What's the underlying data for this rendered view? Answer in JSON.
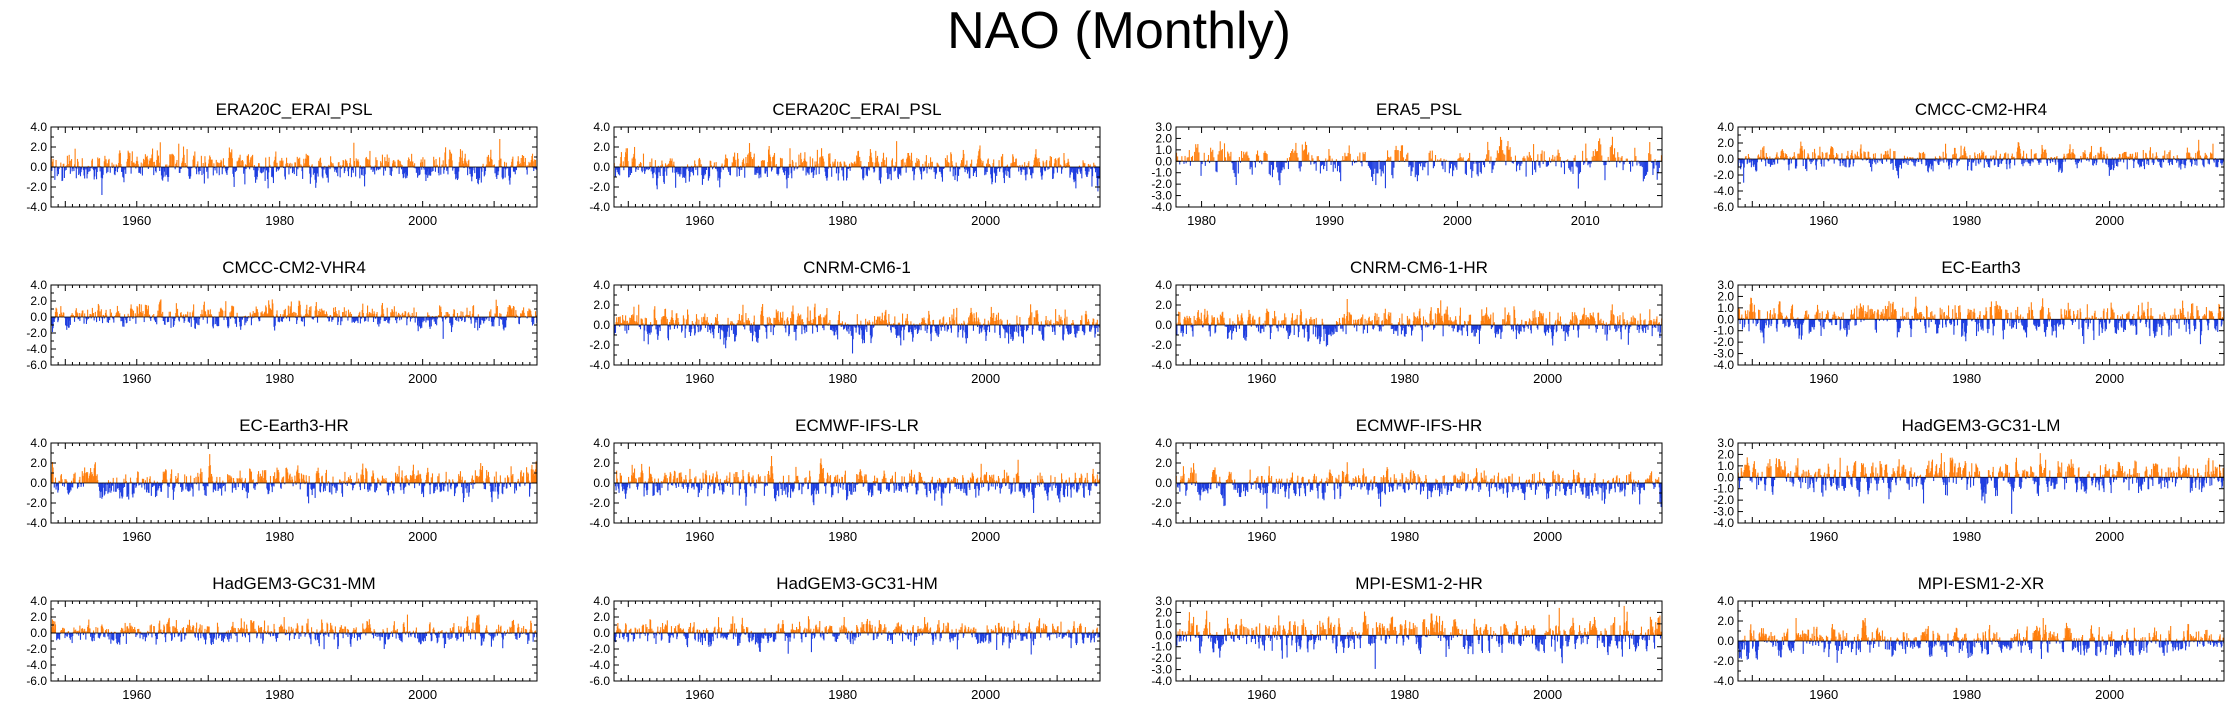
{
  "title": "NAO (Monthly)",
  "colors": {
    "positive": "#ff7f0e",
    "negative": "#1f3fe0",
    "axis": "#000000"
  },
  "chart_data": [
    {
      "type": "bar",
      "title": "ERA20C_ERAI_PSL",
      "xlim": [
        1948,
        2016
      ],
      "ylim": [
        -4,
        4
      ],
      "yticks": [
        -4.0,
        -3.0,
        -2.0,
        -1.0,
        0.0,
        1.0,
        2.0,
        3.0,
        4.0
      ],
      "ytick_labels": [
        "-4.0",
        "",
        "-2.0",
        "",
        "0.0",
        "",
        "2.0",
        "",
        "4.0"
      ],
      "xticks": [
        1960,
        1980,
        2000
      ],
      "ampPos": 2.8,
      "ampNeg": 3.2
    },
    {
      "type": "bar",
      "title": "CERA20C_ERAI_PSL",
      "xlim": [
        1948,
        2016
      ],
      "ylim": [
        -4,
        4
      ],
      "yticks": [
        -4.0,
        -3.0,
        -2.0,
        -1.0,
        0.0,
        1.0,
        2.0,
        3.0,
        4.0
      ],
      "ytick_labels": [
        "-4.0",
        "",
        "-2.0",
        "",
        "0.0",
        "",
        "2.0",
        "",
        "4.0"
      ],
      "xticks": [
        1960,
        1980,
        2000
      ],
      "ampPos": 2.9,
      "ampNeg": 3.2
    },
    {
      "type": "bar",
      "title": "ERA5_PSL",
      "xlim": [
        1978,
        2016
      ],
      "ylim": [
        -4,
        3
      ],
      "yticks": [
        -4.0,
        -3.0,
        -2.0,
        -1.0,
        0.0,
        1.0,
        2.0,
        3.0
      ],
      "ytick_labels": [
        "-4.0",
        "-3.0",
        "-2.0",
        "-1.0",
        "0.0",
        "1.0",
        "2.0",
        "3.0"
      ],
      "xticks": [
        1980,
        1990,
        2000,
        2010
      ],
      "ampPos": 2.6,
      "ampNeg": 3.3
    },
    {
      "type": "bar",
      "title": "CMCC-CM2-HR4",
      "xlim": [
        1948,
        2016
      ],
      "ylim": [
        -6,
        4
      ],
      "yticks": [
        -6.0,
        -5.0,
        -4.0,
        -3.0,
        -2.0,
        -1.0,
        0.0,
        1.0,
        2.0,
        3.0,
        4.0
      ],
      "ytick_labels": [
        "-6.0",
        "",
        "-4.0",
        "",
        "-2.0",
        "",
        "0.0",
        "",
        "2.0",
        "",
        "4.0"
      ],
      "xticks": [
        1960,
        1980,
        2000
      ],
      "ampPos": 2.4,
      "ampNeg": 3.6
    },
    {
      "type": "bar",
      "title": "CMCC-CM2-VHR4",
      "xlim": [
        1948,
        2016
      ],
      "ylim": [
        -6,
        4
      ],
      "yticks": [
        -6.0,
        -5.0,
        -4.0,
        -3.0,
        -2.0,
        -1.0,
        0.0,
        1.0,
        2.0,
        3.0,
        4.0
      ],
      "ytick_labels": [
        "-6.0",
        "",
        "-4.0",
        "",
        "-2.0",
        "",
        "0.0",
        "",
        "2.0",
        "",
        "4.0"
      ],
      "xticks": [
        1960,
        1980,
        2000
      ],
      "ampPos": 2.2,
      "ampNeg": 3.4
    },
    {
      "type": "bar",
      "title": "CNRM-CM6-1",
      "xlim": [
        1948,
        2016
      ],
      "ylim": [
        -4,
        4
      ],
      "yticks": [
        -4.0,
        -3.0,
        -2.0,
        -1.0,
        0.0,
        1.0,
        2.0,
        3.0,
        4.0
      ],
      "ytick_labels": [
        "-4.0",
        "",
        "-2.0",
        "",
        "0.0",
        "",
        "2.0",
        "",
        "4.0"
      ],
      "xticks": [
        1960,
        1980,
        2000
      ],
      "ampPos": 3.0,
      "ampNeg": 3.0
    },
    {
      "type": "bar",
      "title": "CNRM-CM6-1-HR",
      "xlim": [
        1948,
        2016
      ],
      "ylim": [
        -4,
        4
      ],
      "yticks": [
        -4.0,
        -3.0,
        -2.0,
        -1.0,
        0.0,
        1.0,
        2.0,
        3.0,
        4.0
      ],
      "ytick_labels": [
        "-4.0",
        "",
        "-2.0",
        "",
        "0.0",
        "",
        "2.0",
        "",
        "4.0"
      ],
      "xticks": [
        1960,
        1980,
        2000
      ],
      "ampPos": 2.6,
      "ampNeg": 3.0
    },
    {
      "type": "bar",
      "title": "EC-Earth3",
      "xlim": [
        1948,
        2016
      ],
      "ylim": [
        -4,
        3
      ],
      "yticks": [
        -4.0,
        -3.0,
        -2.0,
        -1.0,
        0.0,
        1.0,
        2.0,
        3.0
      ],
      "ytick_labels": [
        "-4.0",
        "-3.0",
        "-2.0",
        "-1.0",
        "0.0",
        "1.0",
        "2.0",
        "3.0"
      ],
      "xticks": [
        1960,
        1980,
        2000
      ],
      "ampPos": 2.7,
      "ampNeg": 3.3
    },
    {
      "type": "bar",
      "title": "EC-Earth3-HR",
      "xlim": [
        1948,
        2016
      ],
      "ylim": [
        -4,
        4
      ],
      "yticks": [
        -4.0,
        -3.0,
        -2.0,
        -1.0,
        0.0,
        1.0,
        2.0,
        3.0,
        4.0
      ],
      "ytick_labels": [
        "-4.0",
        "",
        "-2.0",
        "",
        "0.0",
        "",
        "2.0",
        "",
        "4.0"
      ],
      "xticks": [
        1960,
        1980,
        2000
      ],
      "ampPos": 3.2,
      "ampNeg": 3.0
    },
    {
      "type": "bar",
      "title": "ECMWF-IFS-LR",
      "xlim": [
        1948,
        2016
      ],
      "ylim": [
        -4,
        4
      ],
      "yticks": [
        -4.0,
        -3.0,
        -2.0,
        -1.0,
        0.0,
        1.0,
        2.0,
        3.0,
        4.0
      ],
      "ytick_labels": [
        "-4.0",
        "",
        "-2.0",
        "",
        "0.0",
        "",
        "2.0",
        "",
        "4.0"
      ],
      "xticks": [
        1960,
        1980,
        2000
      ],
      "ampPos": 2.7,
      "ampNeg": 3.0
    },
    {
      "type": "bar",
      "title": "ECMWF-IFS-HR",
      "xlim": [
        1948,
        2016
      ],
      "ylim": [
        -4,
        4
      ],
      "yticks": [
        -4.0,
        -3.0,
        -2.0,
        -1.0,
        0.0,
        1.0,
        2.0,
        3.0,
        4.0
      ],
      "ytick_labels": [
        "-4.0",
        "",
        "-2.0",
        "",
        "0.0",
        "",
        "2.0",
        "",
        "4.0"
      ],
      "xticks": [
        1960,
        1980,
        2000
      ],
      "ampPos": 2.8,
      "ampNeg": 3.0
    },
    {
      "type": "bar",
      "title": "HadGEM3-GC31-LM",
      "xlim": [
        1948,
        2016
      ],
      "ylim": [
        -4,
        3
      ],
      "yticks": [
        -4.0,
        -3.0,
        -2.0,
        -1.0,
        0.0,
        1.0,
        2.0,
        3.0
      ],
      "ytick_labels": [
        "-4.0",
        "-3.0",
        "-2.0",
        "-1.0",
        "0.0",
        "1.0",
        "2.0",
        "3.0"
      ],
      "xticks": [
        1960,
        1980,
        2000
      ],
      "ampPos": 2.4,
      "ampNeg": 3.2
    },
    {
      "type": "bar",
      "title": "HadGEM3-GC31-MM",
      "xlim": [
        1948,
        2016
      ],
      "ylim": [
        -6,
        4
      ],
      "yticks": [
        -6.0,
        -5.0,
        -4.0,
        -3.0,
        -2.0,
        -1.0,
        0.0,
        1.0,
        2.0,
        3.0,
        4.0
      ],
      "ytick_labels": [
        "-6.0",
        "",
        "-4.0",
        "",
        "-2.0",
        "",
        "0.0",
        "",
        "2.0",
        "",
        "4.0"
      ],
      "xticks": [
        1960,
        1980,
        2000
      ],
      "ampPos": 2.3,
      "ampNeg": 3.8
    },
    {
      "type": "bar",
      "title": "HadGEM3-GC31-HM",
      "xlim": [
        1948,
        2016
      ],
      "ylim": [
        -6,
        4
      ],
      "yticks": [
        -6.0,
        -5.0,
        -4.0,
        -3.0,
        -2.0,
        -1.0,
        0.0,
        1.0,
        2.0,
        3.0,
        4.0
      ],
      "ytick_labels": [
        "-6.0",
        "",
        "-4.0",
        "",
        "-2.0",
        "",
        "0.0",
        "",
        "2.0",
        "",
        "4.0"
      ],
      "xticks": [
        1960,
        1980,
        2000
      ],
      "ampPos": 2.1,
      "ampNeg": 3.6
    },
    {
      "type": "bar",
      "title": "MPI-ESM1-2-HR",
      "xlim": [
        1948,
        2016
      ],
      "ylim": [
        -4,
        3
      ],
      "yticks": [
        -4.0,
        -3.0,
        -2.0,
        -1.0,
        0.0,
        1.0,
        2.0,
        3.0
      ],
      "ytick_labels": [
        "-4.0",
        "-3.0",
        "-2.0",
        "-1.0",
        "0.0",
        "1.0",
        "2.0",
        "3.0"
      ],
      "xticks": [
        1960,
        1980,
        2000
      ],
      "ampPos": 2.8,
      "ampNeg": 3.2
    },
    {
      "type": "bar",
      "title": "MPI-ESM1-2-XR",
      "xlim": [
        1948,
        2016
      ],
      "ylim": [
        -4,
        4
      ],
      "yticks": [
        -4.0,
        -3.0,
        -2.0,
        -1.0,
        0.0,
        1.0,
        2.0,
        3.0,
        4.0
      ],
      "ytick_labels": [
        "-4.0",
        "",
        "-2.0",
        "",
        "0.0",
        "",
        "2.0",
        "",
        "4.0"
      ],
      "xticks": [
        1960,
        1980,
        2000
      ],
      "ampPos": 2.3,
      "ampNeg": 3.3
    }
  ]
}
